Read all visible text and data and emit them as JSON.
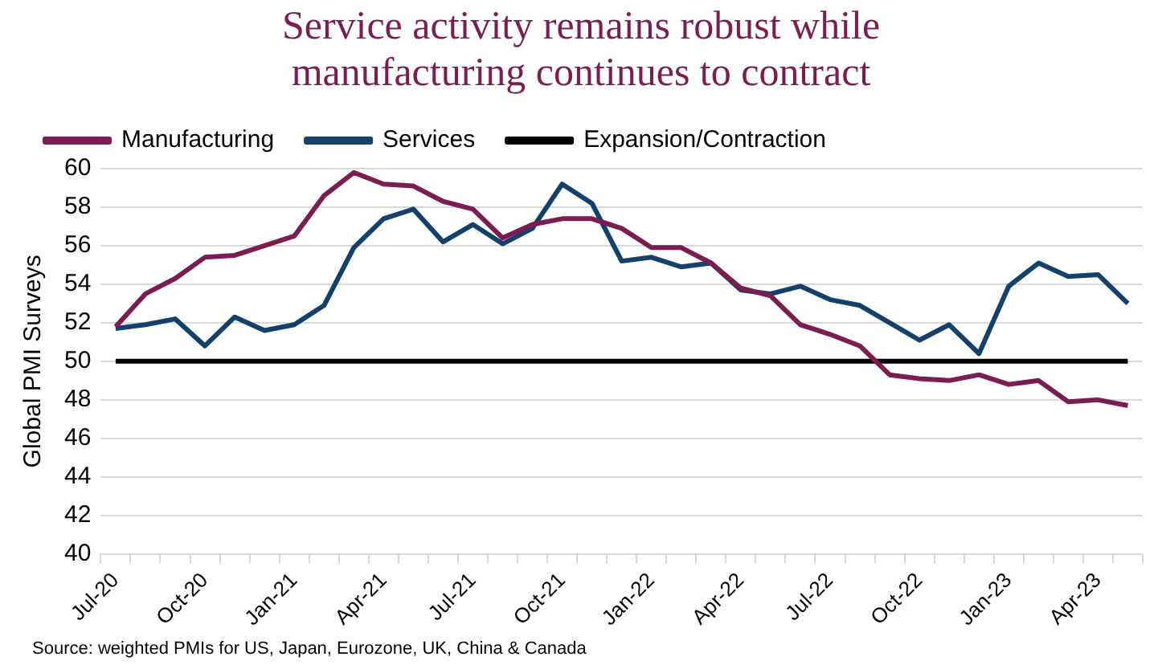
{
  "chart_data": {
    "type": "line",
    "title": "Service activity remains robust while manufacturing continues to contract",
    "ylabel": "Global PMI Surveys",
    "categories": [
      "Jul-20",
      null,
      null,
      "Oct-20",
      null,
      null,
      "Jan-21",
      null,
      null,
      "Apr-21",
      null,
      null,
      "Jul-21",
      null,
      null,
      "Oct-21",
      null,
      null,
      "Jan-22",
      null,
      null,
      "Apr-22",
      null,
      null,
      "Jul-22",
      null,
      null,
      "Oct-22",
      null,
      null,
      "Jan-23",
      null,
      null,
      "Apr-23",
      null
    ],
    "series": [
      {
        "name": "Manufacturing",
        "color": "#7b1c52",
        "values": [
          51.8,
          53.5,
          54.3,
          55.4,
          55.5,
          56.0,
          56.5,
          58.6,
          59.8,
          59.2,
          59.1,
          58.3,
          57.9,
          56.4,
          57.1,
          57.4,
          57.4,
          56.9,
          55.9,
          55.9,
          55.1,
          53.8,
          53.4,
          51.9,
          51.4,
          50.8,
          49.3,
          49.1,
          49.0,
          49.3,
          48.8,
          49.0,
          47.9,
          48.0,
          47.7
        ]
      },
      {
        "name": "Services",
        "color": "#14416b",
        "values": [
          51.7,
          51.9,
          52.2,
          50.8,
          52.3,
          51.6,
          51.9,
          52.9,
          55.9,
          57.4,
          57.9,
          56.2,
          57.1,
          56.1,
          56.9,
          59.2,
          58.2,
          55.2,
          55.4,
          54.9,
          55.1,
          53.7,
          53.5,
          53.9,
          53.2,
          52.9,
          52.0,
          51.1,
          51.9,
          50.4,
          53.9,
          55.1,
          54.4,
          54.5,
          53.0
        ]
      },
      {
        "name": "Expansion/Contraction",
        "color": "#000000",
        "values": [
          50,
          50,
          50,
          50,
          50,
          50,
          50,
          50,
          50,
          50,
          50,
          50,
          50,
          50,
          50,
          50,
          50,
          50,
          50,
          50,
          50,
          50,
          50,
          50,
          50,
          50,
          50,
          50,
          50,
          50,
          50,
          50,
          50,
          50,
          50
        ]
      }
    ],
    "ylim": [
      40,
      60
    ],
    "yticks": [
      40,
      42,
      44,
      46,
      48,
      50,
      52,
      54,
      56,
      58,
      60
    ],
    "grid": "y",
    "legend": "top",
    "marker": "none",
    "line_style": "solid",
    "annotations": [
      "Source: weighted PMIs for US, Japan, Eurozone, UK, China & Canada"
    ]
  }
}
